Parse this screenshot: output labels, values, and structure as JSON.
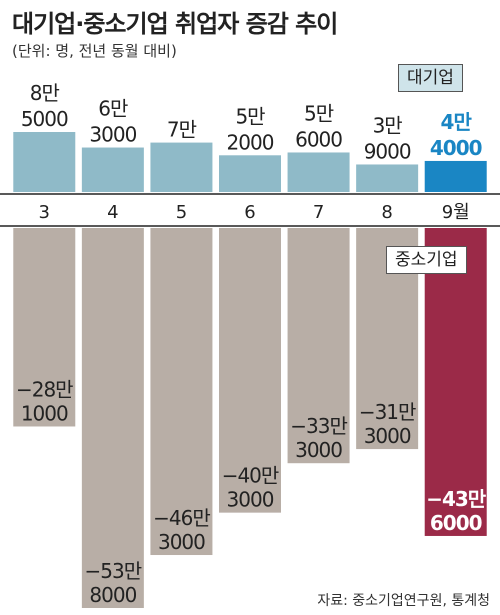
{
  "chart_data": {
    "type": "bar",
    "title": "대기업·중소기업 취업자 증감 추이",
    "subtitle": "(단위: 명, 전년 동월 대비)",
    "source": "자료: 중소기업연구원, 통계청",
    "categories": [
      "3",
      "4",
      "5",
      "6",
      "7",
      "8",
      "9월"
    ],
    "series": [
      {
        "name": "대기업",
        "values": [
          85000,
          63000,
          70000,
          52000,
          56000,
          39000,
          44000
        ],
        "labels_top": [
          "8만",
          "6만",
          "7만",
          "5만",
          "5만",
          "3만",
          "4만"
        ],
        "labels_bottom": [
          "5000",
          "3000",
          "",
          "2000",
          "6000",
          "9000",
          "4000"
        ],
        "color": "#8fbac8",
        "highlight_color": "#1a86c4"
      },
      {
        "name": "중소기업",
        "values": [
          -281000,
          -538000,
          -463000,
          -403000,
          -333000,
          -313000,
          -436000
        ],
        "labels_top": [
          "−28만",
          "−53만",
          "−46만",
          "−40만",
          "−33만",
          "−31만",
          "−43만"
        ],
        "labels_bottom": [
          "1000",
          "8000",
          "3000",
          "3000",
          "3000",
          "3000",
          "6000"
        ],
        "color": "#b8aea6",
        "highlight_color": "#9b2a48"
      }
    ],
    "highlight_index": 6,
    "axis_color": "#222222"
  }
}
